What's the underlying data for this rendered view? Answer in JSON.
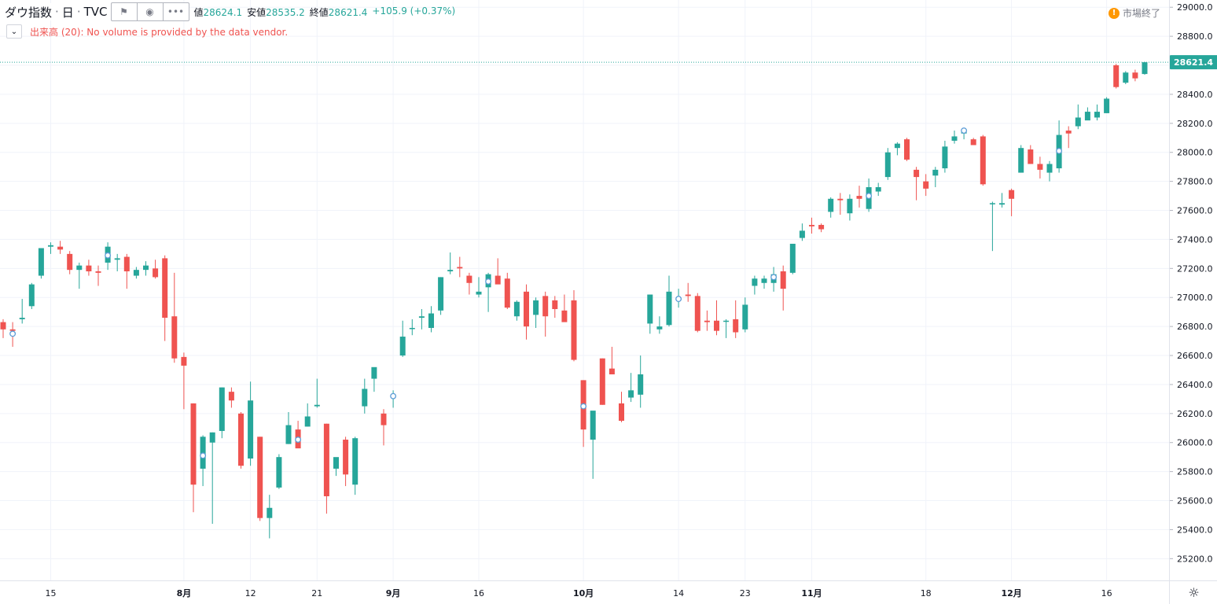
{
  "header": {
    "symbol": "ダウ指数",
    "separator": "·",
    "interval": "日",
    "exchange": "TVC",
    "buttons": [
      {
        "name": "flag-icon",
        "glyph": "⚑"
      },
      {
        "name": "eye-icon",
        "glyph": "◉"
      },
      {
        "name": "more-icon",
        "glyph": "•••"
      }
    ],
    "high_label": "値",
    "high_value": "28624.1",
    "low_label": "安値",
    "low_value": "28535.2",
    "close_label": "終値",
    "close_value": "28621.4",
    "change": "+105.9 (+0.37%)"
  },
  "volume_message": "出来高 (20): No volume is provided by the data vendor.",
  "market_status": "市場終了",
  "settings_glyph": "☼",
  "colors": {
    "up": "#26a69a",
    "down": "#ef5350",
    "grid": "#f0f3fa",
    "axis_text": "#131722",
    "last_price": "#26a69a"
  },
  "chart_data": {
    "type": "candlestick",
    "ylim": [
      25050,
      29050
    ],
    "y_ticks": [
      25200,
      25400,
      25600,
      25800,
      26000,
      26200,
      26400,
      26600,
      26800,
      27000,
      27200,
      27400,
      27600,
      27800,
      28000,
      28200,
      28400,
      28600,
      28800,
      29000
    ],
    "x_ticks": [
      {
        "bar": 5,
        "label": "15"
      },
      {
        "bar": 19,
        "label": "8月"
      },
      {
        "bar": 26,
        "label": "12"
      },
      {
        "bar": 33,
        "label": "21"
      },
      {
        "bar": 41,
        "label": "9月"
      },
      {
        "bar": 50,
        "label": "16"
      },
      {
        "bar": 61,
        "label": "10月"
      },
      {
        "bar": 71,
        "label": "14"
      },
      {
        "bar": 78,
        "label": "23"
      },
      {
        "bar": 85,
        "label": "11月"
      },
      {
        "bar": 97,
        "label": "18"
      },
      {
        "bar": 106,
        "label": "12月"
      },
      {
        "bar": 116,
        "label": "16"
      }
    ],
    "last_price": 28621.4,
    "last_price_label": "28621.4",
    "candles": [
      [
        26830,
        26850,
        26720,
        26780
      ],
      [
        26780,
        26830,
        26660,
        26770
      ],
      [
        26850,
        26990,
        26820,
        26860
      ],
      [
        26940,
        27100,
        26920,
        27090
      ],
      [
        27150,
        27340,
        27130,
        27340
      ],
      [
        27350,
        27380,
        27300,
        27360
      ],
      [
        27350,
        27390,
        27300,
        27330
      ],
      [
        27300,
        27320,
        27160,
        27190
      ],
      [
        27190,
        27240,
        27060,
        27220
      ],
      [
        27220,
        27260,
        27150,
        27180
      ],
      [
        27180,
        27220,
        27080,
        27170
      ],
      [
        27240,
        27380,
        27190,
        27350
      ],
      [
        27260,
        27300,
        27180,
        27270
      ],
      [
        27280,
        27300,
        27060,
        27180
      ],
      [
        27150,
        27210,
        27130,
        27190
      ],
      [
        27190,
        27250,
        27150,
        27220
      ],
      [
        27200,
        27260,
        27130,
        27140
      ],
      [
        27270,
        27290,
        26700,
        26860
      ],
      [
        26870,
        27170,
        26550,
        26580
      ],
      [
        26590,
        26620,
        26230,
        26530
      ],
      [
        26270,
        26270,
        25520,
        25710
      ],
      [
        25820,
        26050,
        25700,
        26040
      ],
      [
        26000,
        26070,
        25440,
        26070
      ],
      [
        26080,
        26380,
        26030,
        26380
      ],
      [
        26350,
        26380,
        26240,
        26290
      ],
      [
        26200,
        26210,
        25820,
        25840
      ],
      [
        25890,
        26420,
        25840,
        26290
      ],
      [
        26040,
        26040,
        25460,
        25480
      ],
      [
        25480,
        25640,
        25340,
        25550
      ],
      [
        25690,
        25920,
        25680,
        25900
      ],
      [
        25990,
        26210,
        25990,
        26120
      ],
      [
        26090,
        26150,
        25970,
        25960
      ],
      [
        26110,
        26270,
        26110,
        26180
      ],
      [
        26250,
        26440,
        26240,
        26260
      ],
      [
        26130,
        26130,
        25510,
        25630
      ],
      [
        25820,
        25880,
        25770,
        25900
      ],
      [
        26020,
        26040,
        25700,
        25780
      ],
      [
        25710,
        26040,
        25640,
        26030
      ],
      [
        26250,
        26440,
        26200,
        26370
      ],
      [
        26440,
        26510,
        26350,
        26520
      ],
      [
        26200,
        26230,
        25980,
        26120
      ],
      [
        26310,
        26360,
        26240,
        26330
      ],
      [
        26600,
        26840,
        26590,
        26730
      ],
      [
        26790,
        26850,
        26740,
        26790
      ],
      [
        26860,
        26920,
        26780,
        26870
      ],
      [
        26790,
        26940,
        26760,
        26890
      ],
      [
        26910,
        27140,
        26880,
        27140
      ],
      [
        27180,
        27310,
        27160,
        27190
      ],
      [
        27210,
        27280,
        27140,
        27200
      ],
      [
        27150,
        27170,
        27020,
        27100
      ],
      [
        27020,
        27140,
        27000,
        27040
      ],
      [
        27070,
        27170,
        26900,
        27160
      ],
      [
        27150,
        27270,
        27130,
        27090
      ],
      [
        27130,
        27170,
        26920,
        26930
      ],
      [
        26870,
        26980,
        26840,
        26970
      ],
      [
        27040,
        27090,
        26710,
        26800
      ],
      [
        26880,
        27000,
        26790,
        26980
      ],
      [
        27010,
        27040,
        26730,
        26870
      ],
      [
        26980,
        27010,
        26860,
        26920
      ],
      [
        26910,
        27020,
        26850,
        26830
      ],
      [
        26980,
        27050,
        26560,
        26570
      ],
      [
        26430,
        26430,
        25970,
        26090
      ],
      [
        26020,
        26210,
        25750,
        26220
      ],
      [
        26580,
        26580,
        26260,
        26260
      ],
      [
        26510,
        26660,
        26480,
        26470
      ],
      [
        26270,
        26350,
        26140,
        26150
      ],
      [
        26310,
        26480,
        26280,
        26360
      ],
      [
        26330,
        26600,
        26240,
        26470
      ],
      [
        26820,
        27020,
        26750,
        27020
      ],
      [
        26780,
        26870,
        26750,
        26800
      ],
      [
        26810,
        27150,
        26800,
        27040
      ],
      [
        27000,
        27060,
        26930,
        27000
      ],
      [
        27020,
        27100,
        26970,
        27010
      ],
      [
        27010,
        27030,
        26760,
        26770
      ],
      [
        26840,
        26910,
        26770,
        26830
      ],
      [
        26840,
        26980,
        26740,
        26770
      ],
      [
        26840,
        26850,
        26720,
        26840
      ],
      [
        26850,
        26980,
        26720,
        26760
      ],
      [
        26780,
        27000,
        26760,
        26950
      ],
      [
        27080,
        27150,
        27020,
        27130
      ],
      [
        27100,
        27150,
        27060,
        27130
      ],
      [
        27100,
        27210,
        27040,
        27160
      ],
      [
        27180,
        27220,
        26910,
        27060
      ],
      [
        27170,
        27360,
        27160,
        27370
      ],
      [
        27410,
        27510,
        27390,
        27460
      ],
      [
        27500,
        27550,
        27440,
        27490
      ],
      [
        27500,
        27510,
        27450,
        27470
      ],
      [
        27590,
        27690,
        27550,
        27680
      ],
      [
        27680,
        27720,
        27570,
        27670
      ],
      [
        27580,
        27710,
        27530,
        27680
      ],
      [
        27700,
        27770,
        27620,
        27680
      ],
      [
        27610,
        27820,
        27590,
        27760
      ],
      [
        27730,
        27790,
        27700,
        27760
      ],
      [
        27830,
        28030,
        27810,
        28000
      ],
      [
        28030,
        28070,
        27980,
        28060
      ],
      [
        28090,
        28100,
        27940,
        27950
      ],
      [
        27880,
        27900,
        27670,
        27830
      ],
      [
        27800,
        27850,
        27700,
        27750
      ],
      [
        27840,
        27900,
        27760,
        27880
      ],
      [
        27890,
        28080,
        27860,
        28040
      ],
      [
        28080,
        28150,
        28060,
        28110
      ],
      [
        28130,
        28150,
        28090,
        28140
      ],
      [
        28090,
        28100,
        28050,
        28050
      ],
      [
        28110,
        28120,
        27770,
        27780
      ],
      [
        27650,
        27660,
        27320,
        27650
      ],
      [
        27640,
        27720,
        27620,
        27650
      ],
      [
        27740,
        27750,
        27560,
        27680
      ],
      [
        27860,
        28050,
        27860,
        28030
      ],
      [
        28020,
        28050,
        27920,
        27920
      ],
      [
        27920,
        27970,
        27820,
        27880
      ],
      [
        27860,
        27940,
        27800,
        27920
      ],
      [
        27890,
        28220,
        27860,
        28120
      ],
      [
        28150,
        28180,
        28030,
        28130
      ],
      [
        28180,
        28330,
        28160,
        28240
      ],
      [
        28220,
        28310,
        28230,
        28280
      ],
      [
        28240,
        28330,
        28220,
        28280
      ],
      [
        28270,
        28380,
        28270,
        28370
      ],
      [
        28600,
        28610,
        28440,
        28450
      ],
      [
        28480,
        28560,
        28470,
        28550
      ],
      [
        28550,
        28570,
        28490,
        28510
      ],
      [
        28540,
        28624,
        28535,
        28621
      ]
    ],
    "markers": [
      {
        "bar": 1,
        "price": 26750
      },
      {
        "bar": 11,
        "price": 27290
      },
      {
        "bar": 21,
        "price": 25910
      },
      {
        "bar": 31,
        "price": 26020
      },
      {
        "bar": 41,
        "price": 26320
      },
      {
        "bar": 51,
        "price": 27110
      },
      {
        "bar": 61,
        "price": 26250
      },
      {
        "bar": 71,
        "price": 26990
      },
      {
        "bar": 81,
        "price": 27140
      },
      {
        "bar": 91,
        "price": 27700
      },
      {
        "bar": 101,
        "price": 28150
      },
      {
        "bar": 111,
        "price": 28010
      }
    ]
  }
}
